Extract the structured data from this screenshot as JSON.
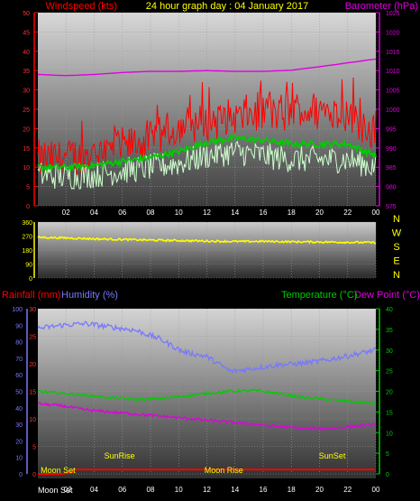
{
  "chart_data": [
    {
      "type": "line",
      "title": "24 hour graph day : 04 January 2017",
      "ylabel": "Windspeed (kts)",
      "ylabel_right": "Barometer (hPa)",
      "xticks": [
        "02",
        "04",
        "06",
        "08",
        "10",
        "12",
        "14",
        "16",
        "18",
        "20",
        "22",
        "00"
      ],
      "ylim": [
        0,
        50
      ],
      "yticks": [
        0,
        5,
        10,
        15,
        20,
        25,
        30,
        35,
        40,
        45,
        50
      ],
      "ylim_right": [
        975,
        1025
      ],
      "yticks_right": [
        975,
        980,
        985,
        990,
        995,
        1000,
        1005,
        1010,
        1015,
        1020,
        1025
      ],
      "x_hours": [
        0,
        2,
        4,
        6,
        8,
        10,
        12,
        14,
        16,
        18,
        20,
        22,
        24
      ],
      "series": [
        {
          "role": "gust",
          "color": "#ff0000",
          "base": [
            12,
            12.5,
            13.5,
            15,
            17,
            20,
            22,
            23,
            24,
            24,
            25,
            24,
            19
          ],
          "spread": 6
        },
        {
          "role": "average",
          "color": "#00cc00",
          "base": [
            10,
            10,
            10.5,
            11.5,
            12.5,
            14,
            16.5,
            17.5,
            17,
            16,
            16,
            16,
            13
          ],
          "spread": 0.8
        },
        {
          "role": "speed",
          "color": "#ccffcc",
          "base": [
            8,
            7.5,
            8,
            9,
            10,
            11,
            13,
            14,
            13,
            12,
            12,
            12,
            10
          ],
          "spread": 3.5
        },
        {
          "role": "barometer",
          "color": "#e000e0",
          "values": [
            1009,
            1008.7,
            1009,
            1009.5,
            1009.8,
            1009.8,
            1010,
            1009.8,
            1009.8,
            1010.1,
            1011,
            1012,
            1013
          ]
        }
      ]
    },
    {
      "type": "line",
      "ylabel": "Wind direction",
      "ylim": [
        0,
        360
      ],
      "yticks": [
        0,
        90,
        180,
        270,
        360
      ],
      "compass_labels": [
        "N",
        "W",
        "S",
        "E",
        "N"
      ],
      "series": [
        {
          "role": "direction",
          "color": "#ffff00",
          "values": [
            262,
            258,
            252,
            248,
            244,
            241,
            238,
            235,
            236,
            233,
            232,
            230,
            228
          ]
        }
      ]
    },
    {
      "type": "line",
      "labels": {
        "rainfall": "Rainfall (mm)",
        "humidity": "Humidity (%)",
        "temperature": "Temperature (°C)",
        "dewpoint": "Dew Point (°C)"
      },
      "humidity_ylim": [
        0,
        100
      ],
      "humidity_yticks": [
        0,
        10,
        20,
        30,
        40,
        50,
        60,
        70,
        80,
        90,
        100
      ],
      "rain_ylim": [
        0,
        30
      ],
      "rain_yticks": [
        0,
        5,
        10,
        15,
        20,
        25,
        30
      ],
      "temp_ylim": [
        0,
        40
      ],
      "temp_yticks": [
        0,
        5,
        10,
        15,
        20,
        25,
        30,
        35,
        40
      ],
      "series": [
        {
          "role": "humidity",
          "color": "#7878ff",
          "values": [
            88,
            90,
            91,
            89,
            87,
            82,
            74,
            71,
            62,
            64,
            66,
            67,
            69,
            72,
            75
          ]
        },
        {
          "role": "temperature",
          "color": "#00cc00",
          "values": [
            20,
            19.5,
            19,
            18.5,
            18,
            18.2,
            18.8,
            19.5,
            20,
            20.2,
            19.5,
            18.5,
            18,
            17.5,
            17
          ]
        },
        {
          "role": "dewpoint",
          "color": "#e000e0",
          "values": [
            17,
            16.5,
            15.5,
            15,
            14.5,
            14,
            13.5,
            13,
            12.5,
            12,
            11.5,
            11,
            11,
            11.5,
            12
          ]
        },
        {
          "role": "rainfall",
          "color": "#ff0000",
          "values": [
            0,
            0,
            0.8,
            0.8,
            0.8,
            0.8,
            0.8,
            0.8,
            0.8,
            0.8,
            0.8,
            0.8,
            0.8,
            0.8,
            0.8
          ]
        }
      ],
      "x_hours_sample": [
        0,
        1.7,
        3.4,
        5.1,
        6.9,
        8.6,
        10.3,
        12,
        13.7,
        15.4,
        17.1,
        18.9,
        20.6,
        22.3,
        24
      ],
      "events": [
        {
          "label": "Moon Set",
          "hour": 0.2,
          "place": "bottom"
        },
        {
          "label": "SunRise",
          "hour": 5.8,
          "place": "top"
        },
        {
          "label": "Moon Rise",
          "hour": 13.2,
          "place": "bottom"
        },
        {
          "label": "SunSet",
          "hour": 20.9,
          "place": "top"
        }
      ],
      "bottom_axis_label": "Moon Set",
      "xticks": [
        "02",
        "04",
        "06",
        "08",
        "10",
        "12",
        "14",
        "16",
        "18",
        "20",
        "22",
        "00"
      ]
    }
  ]
}
